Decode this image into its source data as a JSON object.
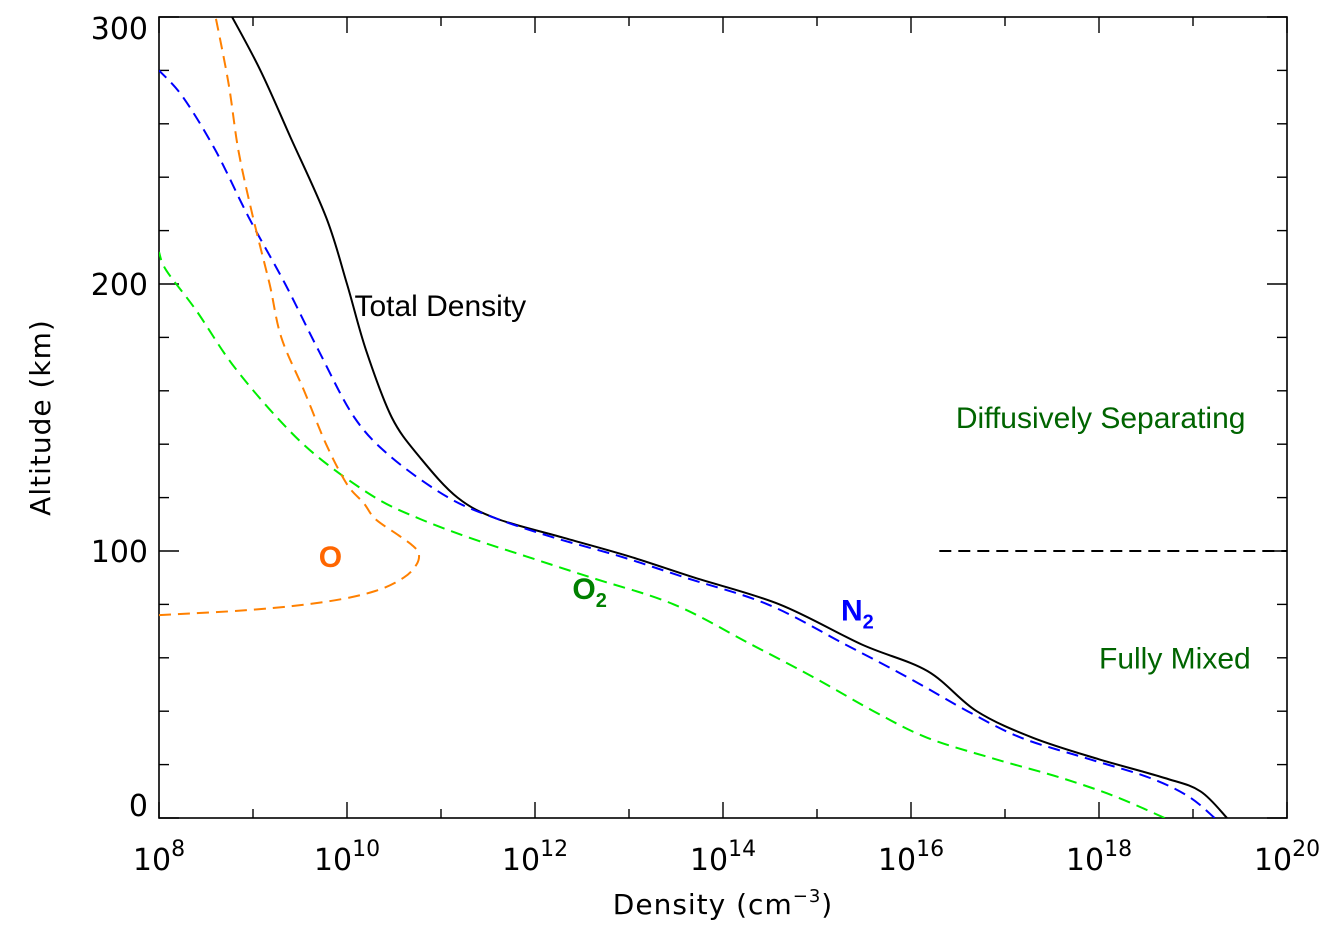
{
  "chart_data": {
    "type": "line",
    "title": "",
    "xlabel": "Density (cm",
    "xlabel_sup": "−3",
    "xlabel_close": ")",
    "ylabel": "Altitude (km)",
    "xscale": "log",
    "xlim": [
      100000000.0,
      1e+20
    ],
    "ylim": [
      0,
      300
    ],
    "x_tick_values": [
      100000000.0,
      10000000000.0,
      1000000000000.0,
      100000000000000.0,
      1e+16,
      1e+18,
      1e+20
    ],
    "x_tick_labels": [
      {
        "base": "10",
        "exp": "8"
      },
      {
        "base": "10",
        "exp": "10"
      },
      {
        "base": "10",
        "exp": "12"
      },
      {
        "base": "10",
        "exp": "14"
      },
      {
        "base": "10",
        "exp": "16"
      },
      {
        "base": "10",
        "exp": "18"
      },
      {
        "base": "10",
        "exp": "20"
      }
    ],
    "y_tick_values": [
      0,
      100,
      200,
      300
    ],
    "y_tick_labels": [
      "0",
      "100",
      "200",
      "300"
    ],
    "series": [
      {
        "key": "total",
        "name": "Total Density",
        "color": "#000000",
        "dash": "solid",
        "points": [
          [
            2.3e+19,
            0
          ],
          [
            1.2e+19,
            10
          ],
          [
            5e+18,
            15
          ],
          [
            1e+18,
            22
          ],
          [
            2e+17,
            30
          ],
          [
            5e+16,
            40
          ],
          [
            1.5e+16,
            55
          ],
          [
            3000000000000000.0,
            65
          ],
          [
            400000000000000.0,
            80
          ],
          [
            50000000000000.0,
            90
          ],
          [
            10000000000000.0,
            98
          ],
          [
            2000000000000.0,
            105
          ],
          [
            400000000000.0,
            112
          ],
          [
            150000000000.0,
            120
          ],
          [
            60000000000.0,
            135
          ],
          [
            30000000000.0,
            150
          ],
          [
            16000000000.0,
            175
          ],
          [
            10000000000.0,
            200
          ],
          [
            6000000000.0,
            225
          ],
          [
            2500000000.0,
            255
          ],
          [
            1200000000.0,
            280
          ],
          [
            600000000.0,
            300
          ]
        ]
      },
      {
        "key": "n2",
        "name": "N2",
        "color": "#0000ff",
        "dash": "dashed",
        "points": [
          [
            1.7e+19,
            0
          ],
          [
            9e+18,
            8
          ],
          [
            3.5e+18,
            15
          ],
          [
            8e+17,
            22
          ],
          [
            1.5e+17,
            30
          ],
          [
            4e+16,
            40
          ],
          [
            1e+16,
            52
          ],
          [
            2000000000000000.0,
            65
          ],
          [
            300000000000000.0,
            80
          ],
          [
            40000000000000.0,
            90
          ],
          [
            8000000000000.0,
            98
          ],
          [
            1600000000000.0,
            105
          ],
          [
            400000000000.0,
            112
          ],
          [
            120000000000.0,
            120
          ],
          [
            30000000000.0,
            135
          ],
          [
            12000000000.0,
            150
          ],
          [
            5000000000.0,
            175
          ],
          [
            2200000000.0,
            200
          ],
          [
            900000000.0,
            225
          ],
          [
            400000000.0,
            250
          ],
          [
            180000000.0,
            270
          ],
          [
            100000000.0,
            280
          ]
        ]
      },
      {
        "key": "o2",
        "name": "O2",
        "color": "#00ee00",
        "dash": "dashed",
        "points": [
          [
            5e+18,
            0
          ],
          [
            1.5e+18,
            8
          ],
          [
            4e+17,
            15
          ],
          [
            8e+16,
            22
          ],
          [
            1.5e+16,
            30
          ],
          [
            4000000000000000.0,
            40
          ],
          [
            1000000000000000.0,
            52
          ],
          [
            200000000000000.0,
            65
          ],
          [
            30000000000000.0,
            80
          ],
          [
            4000000000000.0,
            90
          ],
          [
            800000000000.0,
            98
          ],
          [
            200000000000.0,
            105
          ],
          [
            60000000000.0,
            112
          ],
          [
            20000000000.0,
            120
          ],
          [
            5000000000.0,
            135
          ],
          [
            1800000000.0,
            150
          ],
          [
            600000000.0,
            170
          ],
          [
            250000000.0,
            190
          ],
          [
            120000000.0,
            205
          ],
          [
            100000000.0,
            212
          ]
        ]
      },
      {
        "key": "o",
        "name": "O",
        "color": "#ff8000",
        "dash": "dashed",
        "points": [
          [
            100000000.0,
            76
          ],
          [
            1000000000.0,
            78
          ],
          [
            6000000000.0,
            81
          ],
          [
            20000000000.0,
            85
          ],
          [
            40000000000.0,
            90
          ],
          [
            55000000000.0,
            95
          ],
          [
            58000000000.0,
            99
          ],
          [
            50000000000.0,
            102
          ],
          [
            35000000000.0,
            106
          ],
          [
            20000000000.0,
            112
          ],
          [
            15000000000.0,
            118
          ],
          [
            10000000000.0,
            125
          ],
          [
            6000000000.0,
            140
          ],
          [
            3500000000.0,
            160
          ],
          [
            2000000000.0,
            180
          ],
          [
            1500000000.0,
            200
          ],
          [
            1000000000.0,
            225
          ],
          [
            700000000.0,
            250
          ],
          [
            550000000.0,
            275
          ],
          [
            400000000.0,
            300
          ]
        ]
      },
      {
        "key": "homopause",
        "name": "",
        "color": "#000000",
        "dash": "dashed",
        "points": [
          [
            2e+16,
            100
          ],
          [
            1e+20,
            100
          ]
        ]
      }
    ],
    "annotations": [
      {
        "key": "total",
        "text": "Total Density",
        "sub": "",
        "color": "#000000",
        "bold": false,
        "x": 12000000000.0,
        "y": 188
      },
      {
        "key": "n2",
        "text": "N",
        "sub": "2",
        "color": "#0000ff",
        "bold": true,
        "x": 1800000000000000.0,
        "y": 74
      },
      {
        "key": "o2",
        "text": "O",
        "sub": "2",
        "color": "#008000",
        "bold": true,
        "x": 2500000000000.0,
        "y": 82
      },
      {
        "key": "o",
        "text": "O",
        "sub": "",
        "color": "#ff6600",
        "bold": true,
        "x": 5000000000.0,
        "y": 94
      },
      {
        "key": "diffuse",
        "text": "Diffusively Separating",
        "sub": "",
        "color": "#006400",
        "bold": false,
        "x": 3e+16,
        "y": 146
      },
      {
        "key": "mixed",
        "text": "Fully Mixed",
        "sub": "",
        "color": "#006400",
        "bold": false,
        "x": 1e+18,
        "y": 56
      }
    ],
    "grid": false,
    "legend": "none"
  }
}
